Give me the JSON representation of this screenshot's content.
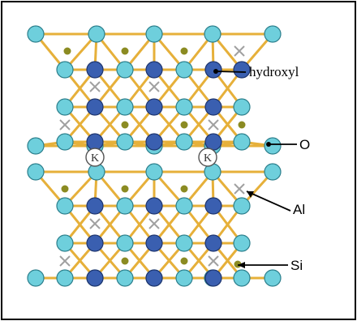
{
  "labels": {
    "hydroxyl": "hydroxyl",
    "oxygen": "O",
    "aluminum": "Al",
    "silicon": "Si",
    "potassium": "K"
  },
  "colors": {
    "frame": "#000000",
    "bond": "#e6b03a",
    "oxygen_fill": "#6ecfdc",
    "oxygen_stroke": "#2c7f8c",
    "hydroxyl_fill": "#3a5fb0",
    "hydroxyl_stroke": "#1e356e",
    "silicon_fill": "#8b8b22",
    "aluminum_mark": "#a0a0a0",
    "potassium_fill": "#ffffff",
    "potassium_stroke": "#555555",
    "pointer": "#000000"
  }
}
